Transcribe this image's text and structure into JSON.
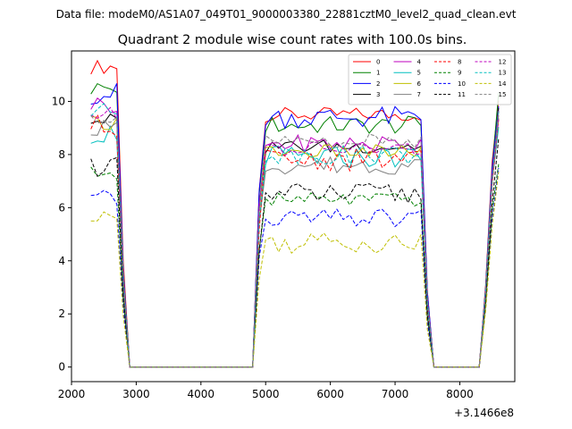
{
  "figure": {
    "suptitle": "Data file: modeM0/AS1A07_049T01_9000003380_22881cztM0_level2_quad_clean.evt"
  },
  "chart_data": {
    "type": "line",
    "title": "Quadrant 2 module wise count rates with 100.0s bins.",
    "xlabel": "",
    "ylabel": "",
    "x_offset_label": "+3.1466e8",
    "xlim": [
      2000,
      8850
    ],
    "ylim": [
      -0.55,
      11.9
    ],
    "xticks": [
      2000,
      3000,
      4000,
      5000,
      6000,
      7000,
      8000
    ],
    "yticks": [
      0,
      2,
      4,
      6,
      8,
      10
    ],
    "legend_placement": "upper-right",
    "legend_columns": 4,
    "grid": false,
    "segments": [
      {
        "x_start": 2300,
        "x_end": 2700
      },
      {
        "x_start": 4900,
        "x_end": 7400
      },
      {
        "x_start": 8500,
        "x_end": 8600
      }
    ],
    "series": [
      {
        "name": "0",
        "color": "#ff0000",
        "dashed": false,
        "levels": [
          11.3,
          9.5,
          10.3
        ]
      },
      {
        "name": "1",
        "color": "#008000",
        "dashed": false,
        "levels": [
          10.5,
          9.1,
          10.0
        ]
      },
      {
        "name": "2",
        "color": "#0000ff",
        "dashed": false,
        "levels": [
          10.3,
          9.4,
          10.0
        ]
      },
      {
        "name": "3",
        "color": "#000000",
        "dashed": false,
        "levels": [
          9.3,
          8.3,
          9.5
        ]
      },
      {
        "name": "4",
        "color": "#bf00bf",
        "dashed": false,
        "levels": [
          9.9,
          8.4,
          9.6
        ]
      },
      {
        "name": "5",
        "color": "#00bfbf",
        "dashed": false,
        "levels": [
          8.8,
          7.9,
          9.3
        ]
      },
      {
        "name": "6",
        "color": "#bfbf00",
        "dashed": false,
        "levels": [
          9.2,
          8.1,
          9.4
        ]
      },
      {
        "name": "7",
        "color": "#808080",
        "dashed": false,
        "levels": [
          9.0,
          7.6,
          9.3
        ]
      },
      {
        "name": "8",
        "color": "#ff0000",
        "dashed": true,
        "levels": [
          9.1,
          7.8,
          9.2
        ]
      },
      {
        "name": "9",
        "color": "#008000",
        "dashed": true,
        "levels": [
          7.3,
          6.3,
          7.9
        ]
      },
      {
        "name": "10",
        "color": "#0000ff",
        "dashed": true,
        "levels": [
          6.3,
          5.6,
          7.4
        ]
      },
      {
        "name": "11",
        "color": "#000000",
        "dashed": true,
        "levels": [
          7.6,
          6.5,
          8.2
        ]
      },
      {
        "name": "12",
        "color": "#bf00bf",
        "dashed": true,
        "levels": [
          9.5,
          8.2,
          9.5
        ]
      },
      {
        "name": "13",
        "color": "#00bfbf",
        "dashed": true,
        "levels": [
          9.6,
          8.0,
          9.5
        ]
      },
      {
        "name": "14",
        "color": "#bfbf00",
        "dashed": true,
        "levels": [
          5.5,
          4.7,
          7.1
        ]
      },
      {
        "name": "15",
        "color": "#808080",
        "dashed": true,
        "levels": [
          9.4,
          8.5,
          9.4
        ]
      }
    ]
  }
}
